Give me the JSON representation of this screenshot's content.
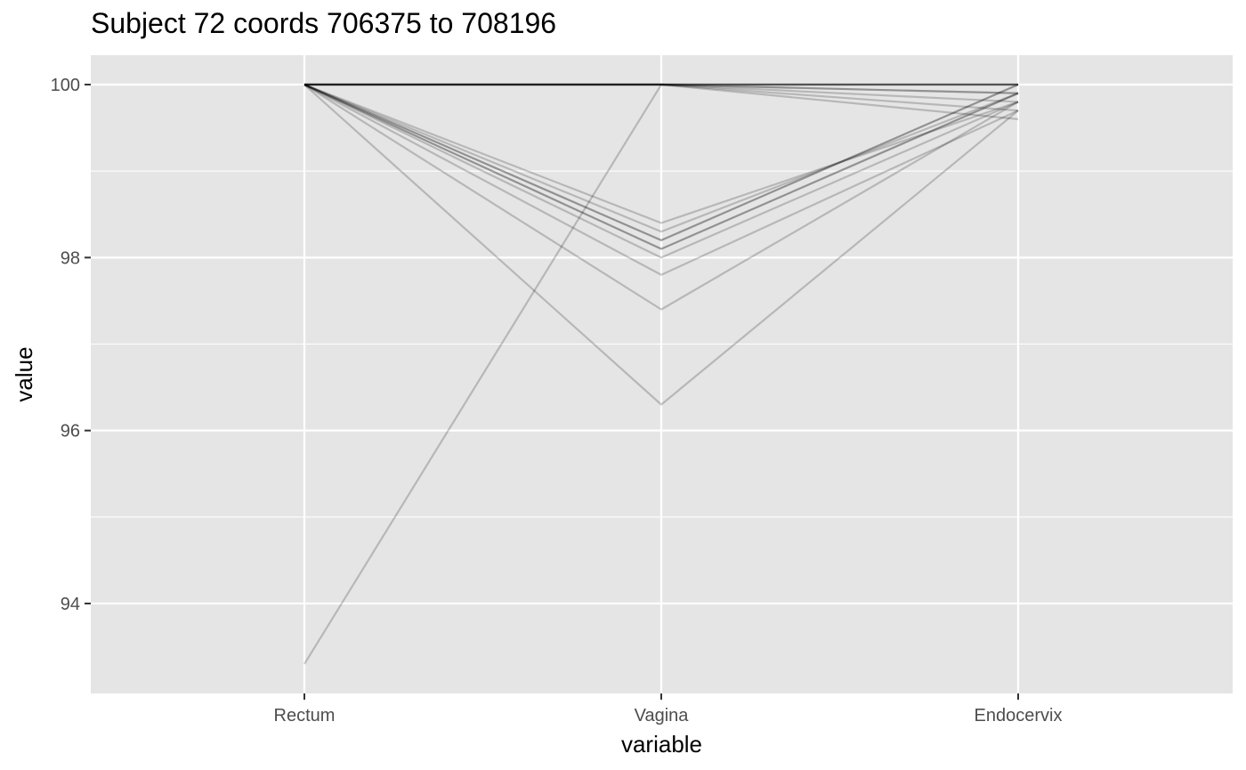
{
  "chart_data": {
    "type": "line",
    "title": "Subject 72 coords 706375 to 708196",
    "xlabel": "variable",
    "ylabel": "value",
    "categories": [
      "Rectum",
      "Vagina",
      "Endocervix"
    ],
    "ylim": [
      92.96,
      100.34
    ],
    "yticks": [
      94,
      96,
      98,
      100
    ],
    "grid": true,
    "line_color": "#000000",
    "panel_background": "#e5e5e5",
    "series": [
      {
        "values": [
          100,
          100,
          100
        ],
        "count": 4
      },
      {
        "values": [
          100,
          100,
          99.9
        ],
        "count": 2
      },
      {
        "values": [
          100,
          100,
          99.8
        ],
        "count": 1
      },
      {
        "values": [
          100,
          100,
          99.7
        ],
        "count": 1
      },
      {
        "values": [
          100,
          100,
          99.6
        ],
        "count": 1
      },
      {
        "values": [
          100,
          98.2,
          100
        ],
        "count": 2
      },
      {
        "values": [
          100,
          98.1,
          99.9
        ],
        "count": 2
      },
      {
        "values": [
          100,
          98.4,
          99.8
        ],
        "count": 1
      },
      {
        "values": [
          100,
          98.3,
          99.9
        ],
        "count": 1
      },
      {
        "values": [
          100,
          98.0,
          99.8
        ],
        "count": 1
      },
      {
        "values": [
          100,
          97.8,
          99.7
        ],
        "count": 1
      },
      {
        "values": [
          100,
          97.4,
          99.8
        ],
        "count": 1
      },
      {
        "values": [
          100,
          96.3,
          99.7
        ],
        "count": 1
      },
      {
        "values": [
          93.3,
          100,
          100
        ],
        "count": 1
      }
    ]
  }
}
